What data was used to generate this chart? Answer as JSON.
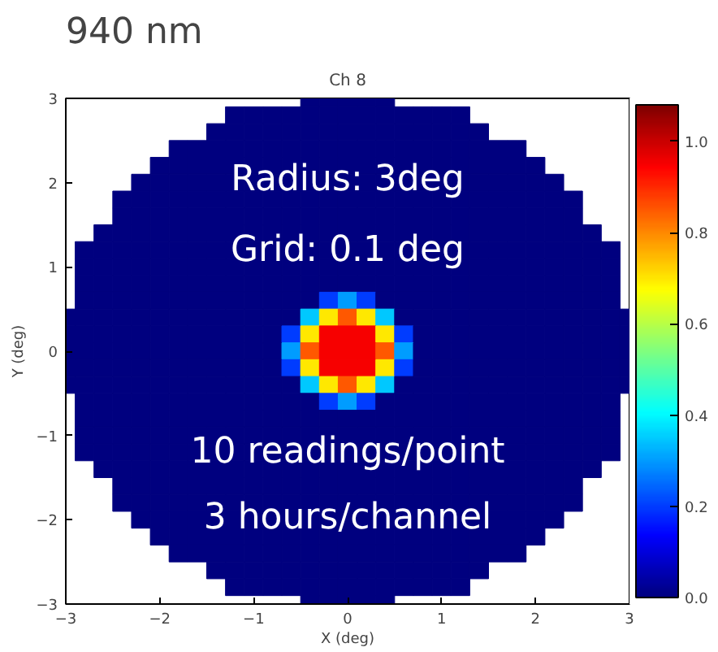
{
  "chart_data": {
    "type": "heatmap",
    "title": "Ch 8",
    "xlabel": "X (deg)",
    "ylabel": "Y (deg)",
    "annotations": [
      "940 nm",
      "Radius: 3deg",
      "Grid: 0.1 deg",
      "10 readings/point",
      "3 hours/channel"
    ],
    "x": [
      -3.0,
      -2.8,
      -2.6,
      -2.4,
      -2.2,
      -2.0,
      -1.8,
      -1.6,
      -1.4,
      -1.2,
      -1.0,
      -0.8,
      -0.6,
      -0.4,
      -0.2,
      0,
      0.2,
      0.4,
      0.6,
      0.8,
      1.0,
      1.2,
      1.4,
      1.6,
      1.8,
      2.0,
      2.2,
      2.4,
      2.6,
      2.8,
      3.0
    ],
    "y": [
      3.0,
      2.8,
      2.6,
      2.4,
      2.2,
      2.0,
      1.8,
      1.6,
      1.4,
      1.2,
      1.0,
      0.8,
      0.6,
      0.4,
      0.2,
      0,
      -0.2,
      -0.4,
      -0.6,
      -0.8,
      -1.0,
      -1.2,
      -1.4,
      -1.6,
      -1.8,
      -2.0,
      -2.2,
      -2.4,
      -2.6,
      -2.8,
      -3.0
    ],
    "xlim": [
      -3,
      3
    ],
    "ylim": [
      -3,
      3
    ],
    "xticks": [
      {
        "value": -3,
        "label": "−3"
      },
      {
        "value": -2,
        "label": "−2"
      },
      {
        "value": -1,
        "label": "−1"
      },
      0,
      1,
      2,
      3
    ],
    "yticks": [
      {
        "value": -3,
        "label": "−3"
      },
      {
        "value": -2,
        "label": "−2"
      },
      {
        "value": -1,
        "label": "−1"
      },
      0,
      1,
      2,
      3
    ],
    "clim": [
      0,
      1.08
    ],
    "cticks": [
      {
        "value": 0,
        "label": "0.0"
      },
      {
        "value": 0.2,
        "label": "0.2"
      },
      {
        "value": 0.4,
        "label": "0.4"
      },
      {
        "value": 0.6,
        "label": "0.6"
      },
      {
        "value": 0.8,
        "label": "0.8"
      },
      {
        "value": 1.0,
        "label": "1.0"
      }
    ],
    "cells": [
      [
        null,
        null,
        null,
        null,
        null,
        null,
        null,
        null,
        null,
        null,
        null,
        null,
        null,
        0,
        0,
        0,
        0,
        0,
        null,
        null,
        null,
        null,
        null,
        null,
        null,
        null,
        null,
        null,
        null,
        null,
        null
      ],
      [
        null,
        null,
        null,
        null,
        null,
        null,
        null,
        null,
        null,
        0,
        0,
        0,
        0,
        0,
        0,
        0,
        0,
        0,
        0,
        0,
        0,
        0,
        null,
        null,
        null,
        null,
        null,
        null,
        null,
        null,
        null
      ],
      [
        null,
        null,
        null,
        null,
        null,
        null,
        null,
        null,
        0,
        0,
        0,
        0,
        0,
        0,
        0,
        0,
        0,
        0,
        0,
        0,
        0,
        0,
        0,
        null,
        null,
        null,
        null,
        null,
        null,
        null,
        null
      ],
      [
        null,
        null,
        null,
        null,
        null,
        null,
        0,
        0,
        0,
        0,
        0,
        0,
        0,
        0,
        0,
        0,
        0,
        0,
        0,
        0,
        0,
        0,
        0,
        0,
        0,
        null,
        null,
        null,
        null,
        null,
        null
      ],
      [
        null,
        null,
        null,
        null,
        null,
        0,
        0,
        0,
        0,
        0,
        0,
        0,
        0,
        0,
        0,
        0,
        0,
        0,
        0,
        0,
        0,
        0,
        0,
        0,
        0,
        0,
        null,
        null,
        null,
        null,
        null
      ],
      [
        null,
        null,
        null,
        null,
        0,
        0,
        0,
        0,
        0,
        0,
        0,
        0,
        0,
        0,
        0,
        0,
        0,
        0,
        0,
        0,
        0,
        0,
        0,
        0,
        0,
        0,
        0,
        null,
        null,
        null,
        null
      ],
      [
        null,
        null,
        null,
        0,
        0,
        0,
        0,
        0,
        0,
        0,
        0,
        0,
        0,
        0,
        0,
        0,
        0,
        0,
        0,
        0,
        0,
        0,
        0,
        0,
        0,
        0,
        0,
        0,
        null,
        null,
        null
      ],
      [
        null,
        null,
        null,
        0,
        0,
        0,
        0,
        0,
        0,
        0,
        0,
        0,
        0,
        0,
        0,
        0,
        0,
        0,
        0,
        0,
        0,
        0,
        0,
        0,
        0,
        0,
        0,
        0,
        null,
        null,
        null
      ],
      [
        null,
        null,
        0,
        0,
        0,
        0,
        0,
        0,
        0,
        0,
        0,
        0,
        0,
        0,
        0,
        0,
        0,
        0,
        0,
        0,
        0,
        0,
        0,
        0,
        0,
        0,
        0,
        0,
        0,
        null,
        null
      ],
      [
        null,
        0,
        0,
        0,
        0,
        0,
        0,
        0,
        0,
        0,
        0,
        0,
        0,
        0,
        0,
        0,
        0,
        0,
        0,
        0,
        0,
        0,
        0,
        0,
        0,
        0,
        0,
        0,
        0,
        0,
        null
      ],
      [
        null,
        0,
        0,
        0,
        0,
        0,
        0,
        0,
        0,
        0,
        0,
        0,
        0,
        0,
        0,
        0,
        0,
        0,
        0,
        0,
        0,
        0,
        0,
        0,
        0,
        0,
        0,
        0,
        0,
        0,
        null
      ],
      [
        null,
        0,
        0,
        0,
        0,
        0,
        0,
        0,
        0,
        0,
        0,
        0,
        0,
        0,
        0,
        0,
        0,
        0,
        0,
        0,
        0,
        0,
        0,
        0,
        0,
        0,
        0,
        0,
        0,
        0,
        null
      ],
      [
        null,
        0,
        0,
        0,
        0,
        0,
        0,
        0,
        0,
        0,
        0,
        0,
        0,
        0,
        0.2,
        0.3,
        0.2,
        0,
        0,
        0,
        0,
        0,
        0,
        0,
        0,
        0,
        0,
        0,
        0,
        0,
        null
      ],
      [
        0,
        0,
        0,
        0,
        0,
        0,
        0,
        0,
        0,
        0,
        0,
        0,
        0,
        0.35,
        0.7,
        0.85,
        0.7,
        0.35,
        0,
        0,
        0,
        0,
        0,
        0,
        0,
        0,
        0,
        0,
        0,
        0,
        0
      ],
      [
        0,
        0,
        0,
        0,
        0,
        0,
        0,
        0,
        0,
        0,
        0,
        0,
        0.2,
        0.7,
        0.95,
        0.95,
        0.95,
        0.7,
        0.2,
        0,
        0,
        0,
        0,
        0,
        0,
        0,
        0,
        0,
        0,
        0,
        0
      ],
      [
        0,
        0,
        0,
        0,
        0,
        0,
        0,
        0,
        0,
        0,
        0,
        0,
        0.3,
        0.85,
        0.95,
        0.95,
        0.95,
        0.85,
        0.3,
        0,
        0,
        0,
        0,
        0,
        0,
        0,
        0,
        0,
        0,
        0,
        0
      ],
      [
        0,
        0,
        0,
        0,
        0,
        0,
        0,
        0,
        0,
        0,
        0,
        0,
        0.2,
        0.7,
        0.95,
        0.95,
        0.95,
        0.7,
        0.2,
        0,
        0,
        0,
        0,
        0,
        0,
        0,
        0,
        0,
        0,
        0,
        0
      ],
      [
        0,
        0,
        0,
        0,
        0,
        0,
        0,
        0,
        0,
        0,
        0,
        0,
        0,
        0.35,
        0.7,
        0.85,
        0.7,
        0.35,
        0,
        0,
        0,
        0,
        0,
        0,
        0,
        0,
        0,
        0,
        0,
        0,
        0
      ],
      [
        null,
        0,
        0,
        0,
        0,
        0,
        0,
        0,
        0,
        0,
        0,
        0,
        0,
        0,
        0.2,
        0.3,
        0.2,
        0,
        0,
        0,
        0,
        0,
        0,
        0,
        0,
        0,
        0,
        0,
        0,
        0,
        null
      ],
      [
        null,
        0,
        0,
        0,
        0,
        0,
        0,
        0,
        0,
        0,
        0,
        0,
        0,
        0,
        0,
        0,
        0,
        0,
        0,
        0,
        0,
        0,
        0,
        0,
        0,
        0,
        0,
        0,
        0,
        0,
        null
      ],
      [
        null,
        0,
        0,
        0,
        0,
        0,
        0,
        0,
        0,
        0,
        0,
        0,
        0,
        0,
        0,
        0,
        0,
        0,
        0,
        0,
        0,
        0,
        0,
        0,
        0,
        0,
        0,
        0,
        0,
        0,
        null
      ],
      [
        null,
        0,
        0,
        0,
        0,
        0,
        0,
        0,
        0,
        0,
        0,
        0,
        0,
        0,
        0,
        0,
        0,
        0,
        0,
        0,
        0,
        0,
        0,
        0,
        0,
        0,
        0,
        0,
        0,
        0,
        null
      ],
      [
        null,
        null,
        0,
        0,
        0,
        0,
        0,
        0,
        0,
        0,
        0,
        0,
        0,
        0,
        0,
        0,
        0,
        0,
        0,
        0,
        0,
        0,
        0,
        0,
        0,
        0,
        0,
        0,
        0,
        null,
        null
      ],
      [
        null,
        null,
        null,
        0,
        0,
        0,
        0,
        0,
        0,
        0,
        0,
        0,
        0,
        0,
        0,
        0,
        0,
        0,
        0,
        0,
        0,
        0,
        0,
        0,
        0,
        0,
        0,
        0,
        null,
        null,
        null
      ],
      [
        null,
        null,
        null,
        0,
        0,
        0,
        0,
        0,
        0,
        0,
        0,
        0,
        0,
        0,
        0,
        0,
        0,
        0,
        0,
        0,
        0,
        0,
        0,
        0,
        0,
        0,
        0,
        0,
        null,
        null,
        null
      ],
      [
        null,
        null,
        null,
        null,
        0,
        0,
        0,
        0,
        0,
        0,
        0,
        0,
        0,
        0,
        0,
        0,
        0,
        0,
        0,
        0,
        0,
        0,
        0,
        0,
        0,
        0,
        0,
        null,
        null,
        null,
        null
      ],
      [
        null,
        null,
        null,
        null,
        null,
        0,
        0,
        0,
        0,
        0,
        0,
        0,
        0,
        0,
        0,
        0,
        0,
        0,
        0,
        0,
        0,
        0,
        0,
        0,
        0,
        0,
        null,
        null,
        null,
        null,
        null
      ],
      [
        null,
        null,
        null,
        null,
        null,
        null,
        0,
        0,
        0,
        0,
        0,
        0,
        0,
        0,
        0,
        0,
        0,
        0,
        0,
        0,
        0,
        0,
        0,
        0,
        0,
        null,
        null,
        null,
        null,
        null,
        null
      ],
      [
        null,
        null,
        null,
        null,
        null,
        null,
        null,
        null,
        0,
        0,
        0,
        0,
        0,
        0,
        0,
        0,
        0,
        0,
        0,
        0,
        0,
        0,
        0,
        null,
        null,
        null,
        null,
        null,
        null,
        null,
        null
      ],
      [
        null,
        null,
        null,
        null,
        null,
        null,
        null,
        null,
        null,
        0,
        0,
        0,
        0,
        0,
        0,
        0,
        0,
        0,
        0,
        0,
        0,
        0,
        null,
        null,
        null,
        null,
        null,
        null,
        null,
        null,
        null
      ],
      [
        null,
        null,
        null,
        null,
        null,
        null,
        null,
        null,
        null,
        null,
        null,
        null,
        null,
        0,
        0,
        0,
        0,
        0,
        null,
        null,
        null,
        null,
        null,
        null,
        null,
        null,
        null,
        null,
        null,
        null,
        null
      ]
    ]
  }
}
